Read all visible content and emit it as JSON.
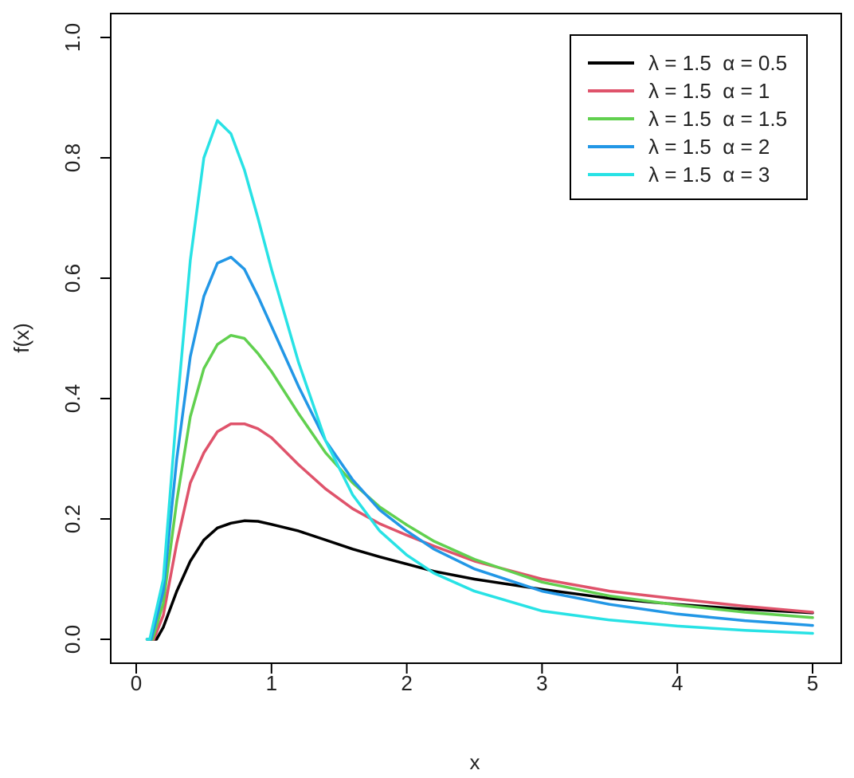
{
  "chart_data": {
    "type": "line",
    "title": "",
    "xlabel": "x",
    "ylabel": "f(x)",
    "xlim": [
      0,
      5
    ],
    "ylim": [
      0,
      1
    ],
    "x_ticks": [
      0,
      1,
      2,
      3,
      4,
      5
    ],
    "x_tick_labels": [
      "0",
      "1",
      "2",
      "3",
      "4",
      "5"
    ],
    "y_ticks": [
      0,
      0.2,
      0.4,
      0.6,
      0.8,
      1.0
    ],
    "y_tick_labels": [
      "0.0",
      "0.2",
      "0.4",
      "0.6",
      "0.8",
      "1.0"
    ],
    "grid": false,
    "legend_position": "top-right",
    "series": [
      {
        "name": "λ = 1.5  α = 0.5",
        "color": "#000000",
        "points": [
          [
            0.08,
            0.0
          ],
          [
            0.15,
            0.0
          ],
          [
            0.2,
            0.02
          ],
          [
            0.3,
            0.08
          ],
          [
            0.4,
            0.13
          ],
          [
            0.5,
            0.165
          ],
          [
            0.6,
            0.185
          ],
          [
            0.7,
            0.193
          ],
          [
            0.8,
            0.197
          ],
          [
            0.9,
            0.196
          ],
          [
            1.0,
            0.191
          ],
          [
            1.2,
            0.18
          ],
          [
            1.4,
            0.165
          ],
          [
            1.6,
            0.15
          ],
          [
            1.8,
            0.137
          ],
          [
            2.0,
            0.125
          ],
          [
            2.2,
            0.113
          ],
          [
            2.5,
            0.1
          ],
          [
            3.0,
            0.083
          ],
          [
            3.5,
            0.068
          ],
          [
            4.0,
            0.058
          ],
          [
            4.5,
            0.05
          ],
          [
            5.0,
            0.044
          ]
        ]
      },
      {
        "name": "λ = 1.5  α = 1",
        "color": "#df536b",
        "points": [
          [
            0.08,
            0.0
          ],
          [
            0.13,
            0.0
          ],
          [
            0.2,
            0.04
          ],
          [
            0.3,
            0.16
          ],
          [
            0.4,
            0.26
          ],
          [
            0.5,
            0.31
          ],
          [
            0.6,
            0.345
          ],
          [
            0.7,
            0.358
          ],
          [
            0.8,
            0.358
          ],
          [
            0.9,
            0.35
          ],
          [
            1.0,
            0.335
          ],
          [
            1.2,
            0.29
          ],
          [
            1.4,
            0.25
          ],
          [
            1.6,
            0.217
          ],
          [
            1.8,
            0.192
          ],
          [
            2.0,
            0.173
          ],
          [
            2.2,
            0.155
          ],
          [
            2.5,
            0.13
          ],
          [
            3.0,
            0.1
          ],
          [
            3.5,
            0.08
          ],
          [
            4.0,
            0.067
          ],
          [
            4.5,
            0.055
          ],
          [
            5.0,
            0.045
          ]
        ]
      },
      {
        "name": "λ = 1.5  α = 1.5",
        "color": "#61d04f",
        "points": [
          [
            0.08,
            0.0
          ],
          [
            0.12,
            0.0
          ],
          [
            0.2,
            0.06
          ],
          [
            0.3,
            0.23
          ],
          [
            0.4,
            0.37
          ],
          [
            0.5,
            0.45
          ],
          [
            0.6,
            0.49
          ],
          [
            0.7,
            0.505
          ],
          [
            0.8,
            0.5
          ],
          [
            0.9,
            0.475
          ],
          [
            1.0,
            0.445
          ],
          [
            1.2,
            0.375
          ],
          [
            1.4,
            0.31
          ],
          [
            1.6,
            0.26
          ],
          [
            1.8,
            0.22
          ],
          [
            2.0,
            0.19
          ],
          [
            2.2,
            0.163
          ],
          [
            2.5,
            0.133
          ],
          [
            3.0,
            0.095
          ],
          [
            3.5,
            0.072
          ],
          [
            4.0,
            0.057
          ],
          [
            4.5,
            0.045
          ],
          [
            5.0,
            0.036
          ]
        ]
      },
      {
        "name": "λ = 1.5  α = 2",
        "color": "#2297e6",
        "points": [
          [
            0.08,
            0.0
          ],
          [
            0.11,
            0.0
          ],
          [
            0.2,
            0.08
          ],
          [
            0.3,
            0.3
          ],
          [
            0.4,
            0.47
          ],
          [
            0.5,
            0.57
          ],
          [
            0.6,
            0.625
          ],
          [
            0.7,
            0.635
          ],
          [
            0.8,
            0.615
          ],
          [
            0.9,
            0.57
          ],
          [
            1.0,
            0.52
          ],
          [
            1.2,
            0.42
          ],
          [
            1.4,
            0.33
          ],
          [
            1.6,
            0.265
          ],
          [
            1.8,
            0.215
          ],
          [
            2.0,
            0.18
          ],
          [
            2.2,
            0.15
          ],
          [
            2.5,
            0.117
          ],
          [
            3.0,
            0.08
          ],
          [
            3.5,
            0.058
          ],
          [
            4.0,
            0.042
          ],
          [
            4.5,
            0.031
          ],
          [
            5.0,
            0.023
          ]
        ]
      },
      {
        "name": "λ = 1.5  α = 3",
        "color": "#28e2e5",
        "points": [
          [
            0.08,
            0.0
          ],
          [
            0.1,
            0.0
          ],
          [
            0.2,
            0.1
          ],
          [
            0.3,
            0.38
          ],
          [
            0.4,
            0.63
          ],
          [
            0.5,
            0.8
          ],
          [
            0.6,
            0.862
          ],
          [
            0.7,
            0.84
          ],
          [
            0.8,
            0.78
          ],
          [
            0.9,
            0.7
          ],
          [
            1.0,
            0.615
          ],
          [
            1.2,
            0.46
          ],
          [
            1.4,
            0.33
          ],
          [
            1.6,
            0.24
          ],
          [
            1.8,
            0.18
          ],
          [
            2.0,
            0.14
          ],
          [
            2.2,
            0.11
          ],
          [
            2.5,
            0.08
          ],
          [
            3.0,
            0.047
          ],
          [
            3.5,
            0.032
          ],
          [
            4.0,
            0.022
          ],
          [
            4.5,
            0.015
          ],
          [
            5.0,
            0.01
          ]
        ]
      }
    ]
  }
}
